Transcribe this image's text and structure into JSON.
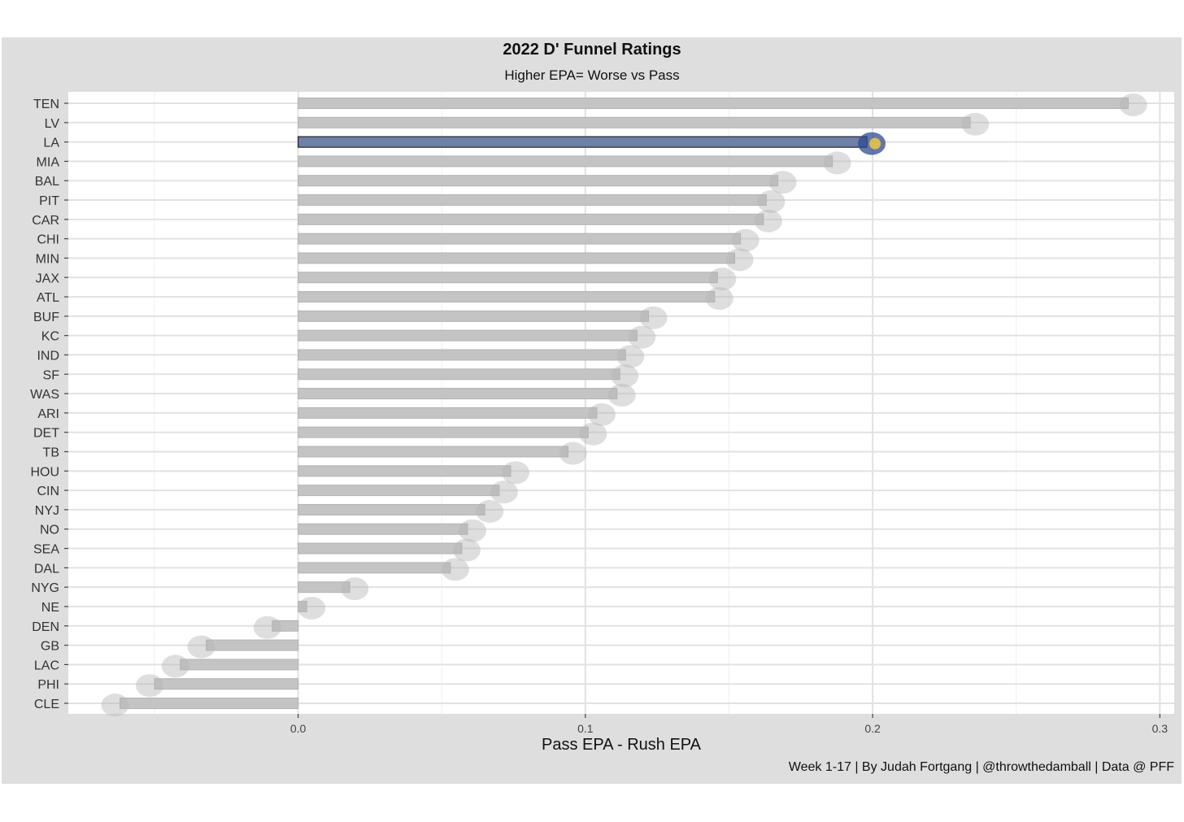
{
  "chart_data": {
    "type": "bar",
    "orientation": "horizontal",
    "title": "2022 D' Funnel Ratings",
    "subtitle": "Higher EPA= Worse vs Pass",
    "xlabel": "Pass EPA - Rush EPA",
    "ylabel": "",
    "caption": "Week 1-17 | By Judah Fortgang | @throwthedamball | Data @ PFF",
    "xlim": [
      -0.08,
      0.305
    ],
    "xticks": [
      "0.0",
      "0.1",
      "0.2",
      "0.3"
    ],
    "xtick_values": [
      0.0,
      0.1,
      0.2,
      0.3
    ],
    "grid": true,
    "legend": "none",
    "highlight": "LA",
    "colors": {
      "bar": "#c4c4c4",
      "bar_outline": "#b3b3b3",
      "highlight": "#6f80a8",
      "highlight_outline": "#222222",
      "panel": "#dedede",
      "plot_bg": "#ffffff",
      "grid": "#e2e2e2"
    },
    "categories": [
      "TEN",
      "LV",
      "LA",
      "MIA",
      "BAL",
      "PIT",
      "CAR",
      "CHI",
      "MIN",
      "JAX",
      "ATL",
      "BUF",
      "KC",
      "IND",
      "SF",
      "WAS",
      "ARI",
      "DET",
      "TB",
      "HOU",
      "CIN",
      "NYJ",
      "NO",
      "SEA",
      "DAL",
      "NYG",
      "NE",
      "DEN",
      "GB",
      "LAC",
      "PHI",
      "CLE"
    ],
    "values": [
      0.289,
      0.234,
      0.198,
      0.186,
      0.167,
      0.163,
      0.162,
      0.154,
      0.152,
      0.146,
      0.145,
      0.122,
      0.118,
      0.114,
      0.112,
      0.111,
      0.104,
      0.101,
      0.094,
      0.074,
      0.07,
      0.065,
      0.059,
      0.057,
      0.053,
      0.018,
      0.003,
      -0.009,
      -0.032,
      -0.041,
      -0.05,
      -0.062
    ]
  }
}
